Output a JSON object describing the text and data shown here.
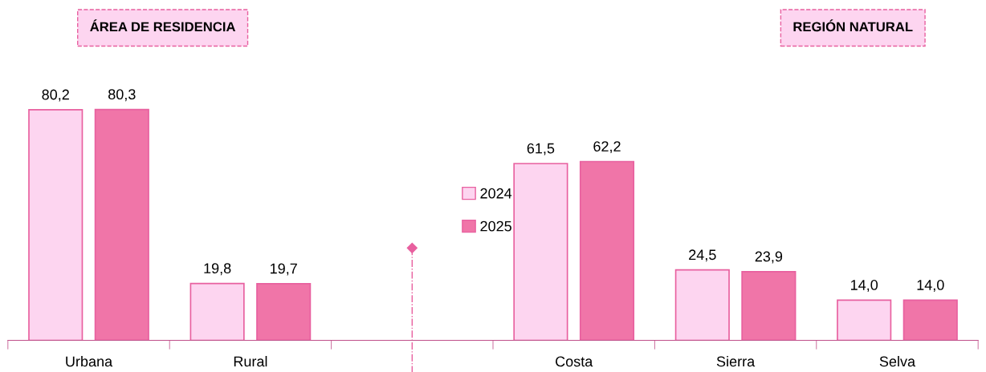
{
  "chart_data": {
    "type": "bar",
    "categories": [
      "Urbana",
      "Rural",
      null,
      "Costa",
      "Sierra",
      "Selva"
    ],
    "series": [
      {
        "name": "2024",
        "color": "#fdd5f0",
        "values": [
          80.2,
          19.8,
          null,
          61.5,
          24.5,
          14.0
        ],
        "value_labels": [
          "80,2",
          "19,8",
          null,
          "61,5",
          "24,5",
          "14,0"
        ]
      },
      {
        "name": "2025",
        "color": "#f075a8",
        "values": [
          80.3,
          19.7,
          null,
          62.2,
          23.9,
          14.0
        ],
        "value_labels": [
          "80,3",
          "19,7",
          null,
          "62,2",
          "23,9",
          "14,0"
        ]
      }
    ],
    "legend": "center",
    "grid": false,
    "annotations": [
      "ÁREA DE RESIDENCIA",
      "REGIÓN NATURAL"
    ]
  }
}
